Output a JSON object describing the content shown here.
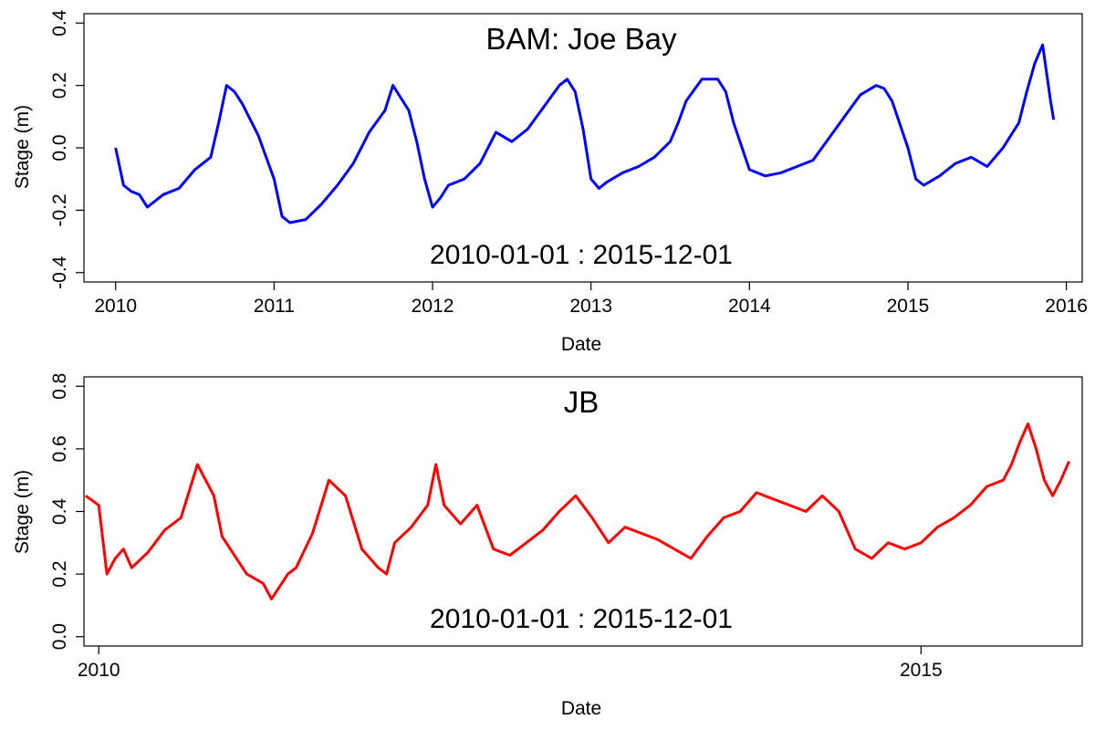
{
  "chart_data": [
    {
      "type": "line",
      "title": "BAM: Joe Bay",
      "annotation": "2010-01-01  :  2015-12-01",
      "xlabel": "Date",
      "ylabel": "Stage (m)",
      "xlim": [
        2009.8,
        2016.1
      ],
      "ylim": [
        -0.43,
        0.43
      ],
      "xticks": [
        2010,
        2011,
        2012,
        2013,
        2014,
        2015,
        2016
      ],
      "xtick_labels": [
        "2010",
        "2011",
        "2012",
        "2013",
        "2014",
        "2015",
        "2016"
      ],
      "yticks": [
        -0.4,
        -0.2,
        0.0,
        0.2,
        0.4
      ],
      "ytick_labels": [
        "-0.4",
        "-0.2",
        "0.0",
        "0.2",
        "0.4"
      ],
      "grid": false,
      "series": [
        {
          "color": "#0000ff",
          "x": [
            2010.0,
            2010.05,
            2010.1,
            2010.15,
            2010.2,
            2010.3,
            2010.4,
            2010.5,
            2010.6,
            2010.65,
            2010.7,
            2010.75,
            2010.8,
            2010.9,
            2011.0,
            2011.05,
            2011.1,
            2011.2,
            2011.3,
            2011.4,
            2011.5,
            2011.6,
            2011.7,
            2011.75,
            2011.8,
            2011.85,
            2011.9,
            2011.95,
            2012.0,
            2012.05,
            2012.1,
            2012.2,
            2012.3,
            2012.35,
            2012.4,
            2012.5,
            2012.6,
            2012.7,
            2012.8,
            2012.85,
            2012.9,
            2012.95,
            2013.0,
            2013.05,
            2013.1,
            2013.2,
            2013.3,
            2013.4,
            2013.5,
            2013.55,
            2013.6,
            2013.7,
            2013.8,
            2013.85,
            2013.9,
            2014.0,
            2014.1,
            2014.2,
            2014.3,
            2014.4,
            2014.5,
            2014.6,
            2014.7,
            2014.8,
            2014.85,
            2014.9,
            2015.0,
            2015.05,
            2015.1,
            2015.2,
            2015.3,
            2015.4,
            2015.5,
            2015.6,
            2015.7,
            2015.75,
            2015.8,
            2015.85,
            2015.9,
            2015.92
          ],
          "y": [
            0.0,
            -0.12,
            -0.14,
            -0.15,
            -0.19,
            -0.15,
            -0.13,
            -0.07,
            -0.03,
            0.08,
            0.2,
            0.18,
            0.14,
            0.04,
            -0.1,
            -0.22,
            -0.24,
            -0.23,
            -0.18,
            -0.12,
            -0.05,
            0.05,
            0.12,
            0.2,
            0.16,
            0.12,
            0.02,
            -0.1,
            -0.19,
            -0.16,
            -0.12,
            -0.1,
            -0.05,
            0.0,
            0.05,
            0.02,
            0.06,
            0.13,
            0.2,
            0.22,
            0.18,
            0.06,
            -0.1,
            -0.13,
            -0.11,
            -0.08,
            -0.06,
            -0.03,
            0.02,
            0.08,
            0.15,
            0.22,
            0.22,
            0.18,
            0.08,
            -0.07,
            -0.09,
            -0.08,
            -0.06,
            -0.04,
            0.03,
            0.1,
            0.17,
            0.2,
            0.19,
            0.15,
            0.0,
            -0.1,
            -0.12,
            -0.09,
            -0.05,
            -0.03,
            -0.06,
            0.0,
            0.08,
            0.18,
            0.27,
            0.33,
            0.15,
            0.09
          ]
        }
      ]
    },
    {
      "type": "line",
      "title": "JB",
      "annotation": "2010-01-01  :  2015-12-01",
      "xlabel": "Date",
      "ylabel": "Stage (m)",
      "xlim": [
        2009.91,
        2015.98
      ],
      "ylim": [
        -0.03,
        0.83
      ],
      "xticks": [
        2010,
        2015
      ],
      "xtick_labels": [
        "2010",
        "2015"
      ],
      "yticks": [
        0.0,
        0.2,
        0.4,
        0.6,
        0.8
      ],
      "ytick_labels": [
        "0.0",
        "0.2",
        "0.4",
        "0.6",
        "0.8"
      ],
      "grid": false,
      "series": [
        {
          "color": "#ff0000",
          "x": [
            2009.92,
            2010.0,
            2010.05,
            2010.1,
            2010.15,
            2010.2,
            2010.3,
            2010.4,
            2010.5,
            2010.6,
            2010.7,
            2010.75,
            2010.8,
            2010.9,
            2011.0,
            2011.05,
            2011.1,
            2011.15,
            2011.2,
            2011.3,
            2011.4,
            2011.5,
            2011.6,
            2011.7,
            2011.75,
            2011.8,
            2011.9,
            2012.0,
            2012.05,
            2012.1,
            2012.2,
            2012.3,
            2012.4,
            2012.5,
            2012.6,
            2012.7,
            2012.8,
            2012.9,
            2013.0,
            2013.1,
            2013.2,
            2013.3,
            2013.4,
            2013.5,
            2013.6,
            2013.7,
            2013.8,
            2013.9,
            2014.0,
            2014.1,
            2014.2,
            2014.3,
            2014.4,
            2014.5,
            2014.6,
            2014.7,
            2014.8,
            2014.9,
            2015.0,
            2015.1,
            2015.2,
            2015.3,
            2015.4,
            2015.5,
            2015.55,
            2015.6,
            2015.65,
            2015.7,
            2015.75,
            2015.8,
            2015.85,
            2015.9
          ],
          "y": [
            0.45,
            0.42,
            0.2,
            0.25,
            0.28,
            0.22,
            0.27,
            0.34,
            0.38,
            0.55,
            0.45,
            0.32,
            0.28,
            0.2,
            0.17,
            0.12,
            0.16,
            0.2,
            0.22,
            0.33,
            0.5,
            0.45,
            0.28,
            0.22,
            0.2,
            0.3,
            0.35,
            0.42,
            0.55,
            0.42,
            0.36,
            0.42,
            0.28,
            0.26,
            0.3,
            0.34,
            0.4,
            0.45,
            0.38,
            0.3,
            0.35,
            0.33,
            0.31,
            0.28,
            0.25,
            0.32,
            0.38,
            0.4,
            0.46,
            0.44,
            0.42,
            0.4,
            0.45,
            0.4,
            0.28,
            0.25,
            0.3,
            0.28,
            0.3,
            0.35,
            0.38,
            0.42,
            0.48,
            0.5,
            0.55,
            0.62,
            0.68,
            0.6,
            0.5,
            0.45,
            0.5,
            0.56
          ]
        }
      ]
    }
  ]
}
